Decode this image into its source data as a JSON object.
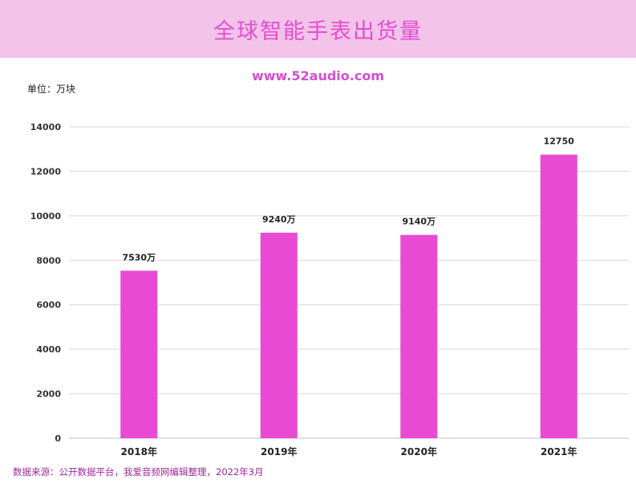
{
  "header": {
    "title": "全球智能手表出货量"
  },
  "watermark": "www.52audio.com",
  "unit_label": "单位：万块",
  "source_note": "数据来源：公开数据平台，我爱音频网编辑整理，2022年3月",
  "colors": {
    "banner": "#f3c3ea",
    "title": "#e24fd0",
    "bar": "#e84ad3",
    "grid": "#d9d9d9",
    "source": "#a0289c"
  },
  "chart_data": {
    "type": "bar",
    "title": "全球智能手表出货量",
    "categories": [
      "2018年",
      "2019年",
      "2020年",
      "2021年"
    ],
    "values": [
      7530,
      9240,
      9140,
      12750
    ],
    "data_labels": [
      "7530万",
      "9240万",
      "9140万",
      "12750"
    ],
    "ylim": [
      0,
      14000
    ],
    "yticks": [
      0,
      2000,
      4000,
      6000,
      8000,
      10000,
      12000,
      14000
    ],
    "grid": true,
    "legend": "none"
  }
}
